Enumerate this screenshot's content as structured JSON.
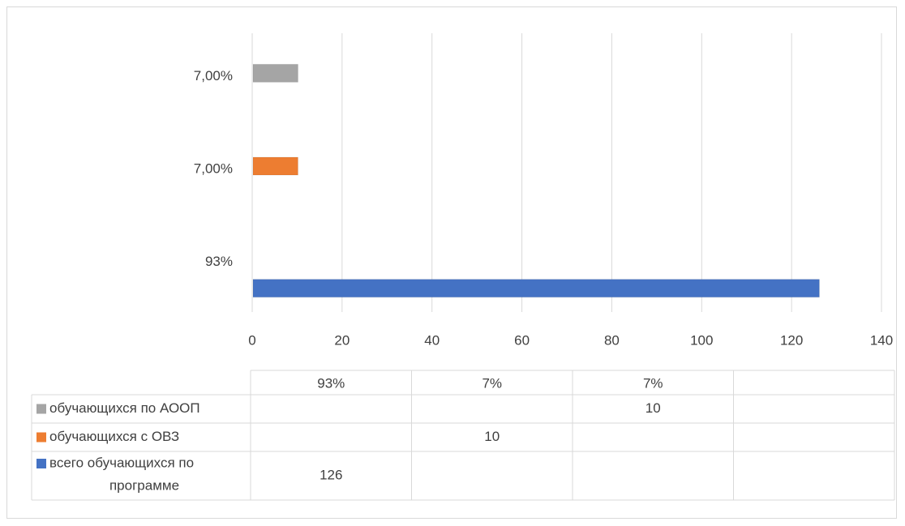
{
  "chart_data": {
    "type": "bar",
    "orientation": "horizontal",
    "y_categories": [
      "93%",
      "7,00%",
      "7,00%"
    ],
    "x_ticks": [
      0,
      20,
      40,
      60,
      80,
      100,
      120,
      140
    ],
    "xlim": [
      0,
      140
    ],
    "grid": true,
    "legend": "data-table",
    "table_columns": [
      "93%",
      "7%",
      "7%",
      ""
    ],
    "series": [
      {
        "name": "обучающихся по АООП",
        "name_lines": [
          "обучающихся по АООП"
        ],
        "color": "#a5a5a5",
        "bar_row": 2,
        "value": 10,
        "table_cells": [
          "",
          "",
          "10",
          ""
        ]
      },
      {
        "name": "обучающихся с ОВЗ",
        "name_lines": [
          "обучающихся с ОВЗ"
        ],
        "color": "#ed7d31",
        "bar_row": 1,
        "value": 10,
        "table_cells": [
          "",
          "10",
          "",
          ""
        ]
      },
      {
        "name": "всего обучающихся по программе",
        "name_lines": [
          "всего обучающихся по",
          "программе"
        ],
        "color": "#4472c4",
        "bar_row": 0,
        "value": 126,
        "table_cells": [
          "126",
          "",
          "",
          ""
        ]
      }
    ]
  }
}
